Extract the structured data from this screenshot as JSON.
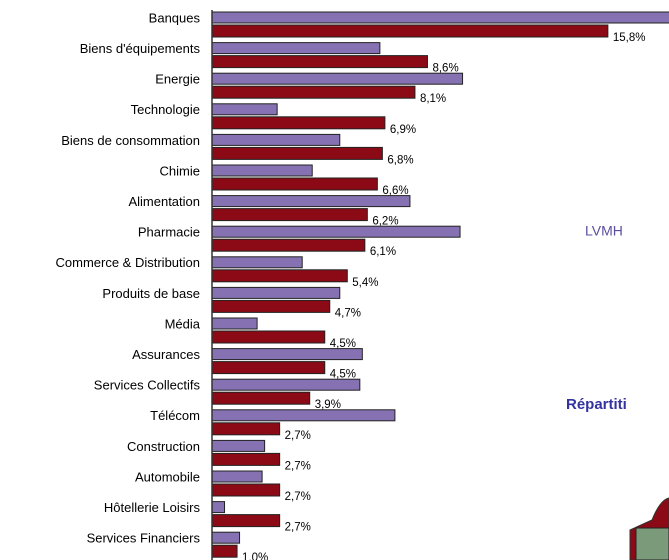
{
  "chart_data": {
    "type": "bar",
    "orientation": "horizontal",
    "categories": [
      "Banques",
      "Biens d'équipements",
      "Energie",
      "Technologie",
      "Biens de consommation",
      "Chimie",
      "Alimentation",
      "Pharmacie",
      "Commerce & Distribution",
      "Produits de base",
      "Média",
      "Assurances",
      "Services Collectifs",
      "Télécom",
      "Construction",
      "Automobile",
      "Hôtellerie Loisirs",
      "Services Financiers"
    ],
    "series": [
      {
        "color": "#8672b2",
        "values": [
          19,
          6.7,
          10.0,
          2.6,
          5.1,
          4.0,
          7.9,
          9.9,
          3.6,
          5.1,
          1.8,
          6.0,
          5.9,
          7.3,
          2.1,
          2.0,
          0.5,
          1.1
        ]
      },
      {
        "color": "#8b0a16",
        "values": [
          15.8,
          8.6,
          8.1,
          6.9,
          6.8,
          6.6,
          6.2,
          6.1,
          5.4,
          4.7,
          4.5,
          4.5,
          3.9,
          2.7,
          2.7,
          2.7,
          2.7,
          1.0
        ],
        "value_labels": [
          "15,8%",
          "8,6%",
          "8,1%",
          "6,9%",
          "6,8%",
          "6,6%",
          "6,2%",
          "6,1%",
          "5,4%",
          "4,7%",
          "4,5%",
          "4,5%",
          "3,9%",
          "2,7%",
          "2,7%",
          "2,7%",
          "2,7%",
          "1,0%"
        ]
      }
    ],
    "xlim": [
      0,
      18.2
    ],
    "annotations": [
      "LVMH",
      "Répartiti"
    ]
  }
}
